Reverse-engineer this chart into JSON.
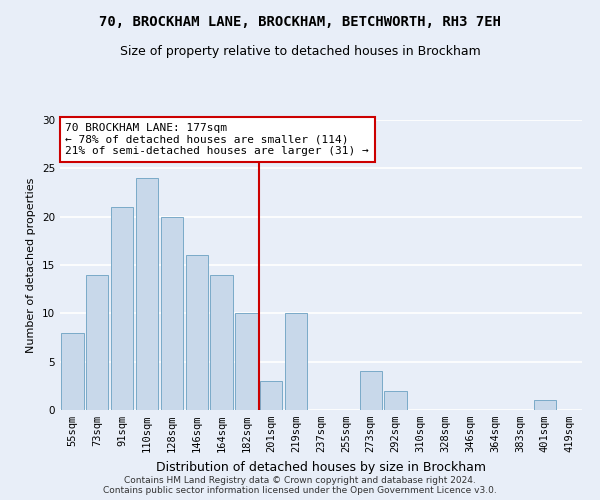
{
  "title": "70, BROCKHAM LANE, BROCKHAM, BETCHWORTH, RH3 7EH",
  "subtitle": "Size of property relative to detached houses in Brockham",
  "xlabel": "Distribution of detached houses by size in Brockham",
  "ylabel": "Number of detached properties",
  "categories": [
    "55sqm",
    "73sqm",
    "91sqm",
    "110sqm",
    "128sqm",
    "146sqm",
    "164sqm",
    "182sqm",
    "201sqm",
    "219sqm",
    "237sqm",
    "255sqm",
    "273sqm",
    "292sqm",
    "310sqm",
    "328sqm",
    "346sqm",
    "364sqm",
    "383sqm",
    "401sqm",
    "419sqm"
  ],
  "values": [
    8,
    14,
    21,
    24,
    20,
    16,
    14,
    10,
    3,
    10,
    0,
    0,
    4,
    2,
    0,
    0,
    0,
    0,
    0,
    1,
    0
  ],
  "bar_color": "#c8d8ea",
  "bar_edge_color": "#7aaac8",
  "reference_line_x": 7.5,
  "reference_line_color": "#cc0000",
  "annotation_text": "70 BROCKHAM LANE: 177sqm\n← 78% of detached houses are smaller (114)\n21% of semi-detached houses are larger (31) →",
  "annotation_box_color": "#ffffff",
  "annotation_box_edge_color": "#cc0000",
  "footer_line1": "Contains HM Land Registry data © Crown copyright and database right 2024.",
  "footer_line2": "Contains public sector information licensed under the Open Government Licence v3.0.",
  "ylim": [
    0,
    30
  ],
  "yticks": [
    0,
    5,
    10,
    15,
    20,
    25,
    30
  ],
  "background_color": "#e8eef8",
  "grid_color": "#ffffff",
  "title_fontsize": 10,
  "subtitle_fontsize": 9,
  "ylabel_fontsize": 8,
  "xlabel_fontsize": 9,
  "tick_fontsize": 7.5,
  "annotation_fontsize": 8,
  "footer_fontsize": 6.5
}
